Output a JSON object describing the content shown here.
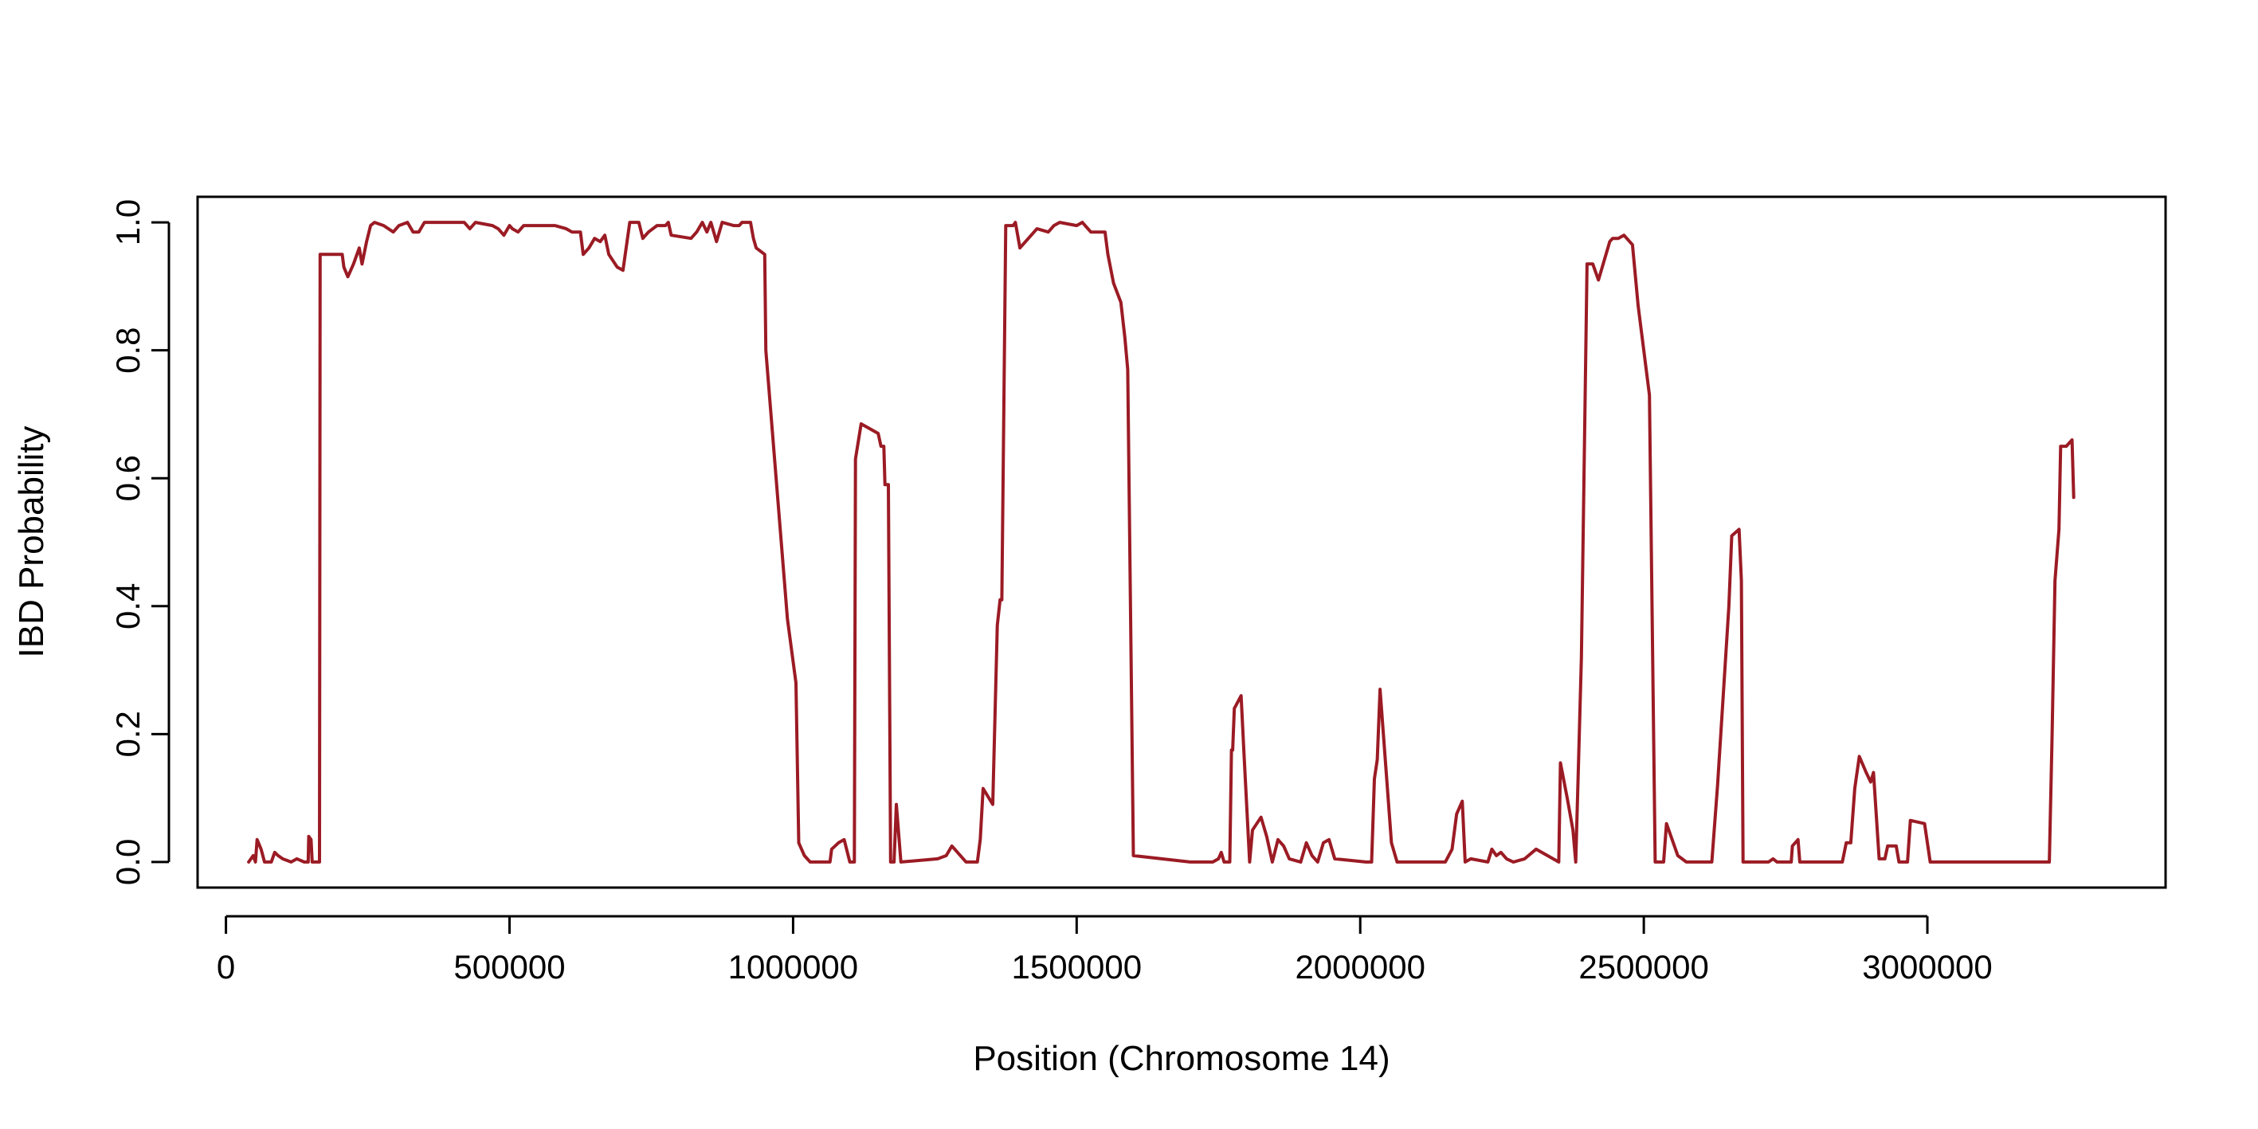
{
  "chart_data": {
    "type": "line",
    "title": "",
    "xlabel": "Position (Chromosome 14)",
    "ylabel": "IBD Probability",
    "xlim": [
      -50000,
      3420000
    ],
    "ylim": [
      -0.04,
      1.04
    ],
    "x_ticks": [
      0,
      500000,
      1000000,
      1500000,
      2000000,
      2500000,
      3000000
    ],
    "x_tick_labels": [
      "0",
      "500000",
      "1000000",
      "1500000",
      "2000000",
      "2500000",
      "3000000"
    ],
    "y_ticks": [
      0.0,
      0.2,
      0.4,
      0.6,
      0.8,
      1.0
    ],
    "y_tick_labels": [
      "0.0",
      "0.2",
      "0.4",
      "0.6",
      "0.8",
      "1.0"
    ],
    "grid": false,
    "legend": "none",
    "line_color": "#9b1b24",
    "series": [
      {
        "points": [
          [
            40000,
            0.0
          ],
          [
            48000,
            0.01
          ],
          [
            52000,
            0.0
          ],
          [
            55000,
            0.035
          ],
          [
            62000,
            0.02
          ],
          [
            68000,
            0.0
          ],
          [
            80000,
            0.0
          ],
          [
            86000,
            0.015
          ],
          [
            92000,
            0.01
          ],
          [
            100000,
            0.005
          ],
          [
            115000,
            0.0
          ],
          [
            125000,
            0.005
          ],
          [
            138000,
            0.0
          ],
          [
            145000,
            0.0
          ],
          [
            146000,
            0.04
          ],
          [
            150000,
            0.035
          ],
          [
            152000,
            0.0
          ],
          [
            165000,
            0.0
          ],
          [
            166000,
            0.95
          ],
          [
            205000,
            0.95
          ],
          [
            208000,
            0.93
          ],
          [
            215000,
            0.915
          ],
          [
            225000,
            0.935
          ],
          [
            235000,
            0.96
          ],
          [
            240000,
            0.935
          ],
          [
            248000,
            0.97
          ],
          [
            255000,
            0.995
          ],
          [
            262000,
            1.0
          ],
          [
            278000,
            0.995
          ],
          [
            295000,
            0.985
          ],
          [
            305000,
            0.995
          ],
          [
            320000,
            1.0
          ],
          [
            330000,
            0.985
          ],
          [
            340000,
            0.985
          ],
          [
            350000,
            1.0
          ],
          [
            420000,
            1.0
          ],
          [
            430000,
            0.99
          ],
          [
            440000,
            1.0
          ],
          [
            470000,
            0.995
          ],
          [
            480000,
            0.99
          ],
          [
            490000,
            0.98
          ],
          [
            500000,
            0.995
          ],
          [
            505000,
            0.99
          ],
          [
            515000,
            0.985
          ],
          [
            525000,
            0.995
          ],
          [
            580000,
            0.995
          ],
          [
            600000,
            0.99
          ],
          [
            610000,
            0.985
          ],
          [
            625000,
            0.985
          ],
          [
            630000,
            0.95
          ],
          [
            640000,
            0.96
          ],
          [
            650000,
            0.975
          ],
          [
            660000,
            0.97
          ],
          [
            668000,
            0.98
          ],
          [
            675000,
            0.95
          ],
          [
            690000,
            0.93
          ],
          [
            700000,
            0.925
          ],
          [
            712000,
            1.0
          ],
          [
            728000,
            1.0
          ],
          [
            735000,
            0.975
          ],
          [
            745000,
            0.985
          ],
          [
            760000,
            0.995
          ],
          [
            775000,
            0.995
          ],
          [
            780000,
            1.0
          ],
          [
            785000,
            0.98
          ],
          [
            820000,
            0.975
          ],
          [
            830000,
            0.985
          ],
          [
            840000,
            1.0
          ],
          [
            848000,
            0.985
          ],
          [
            855000,
            1.0
          ],
          [
            860000,
            0.985
          ],
          [
            865000,
            0.97
          ],
          [
            875000,
            1.0
          ],
          [
            895000,
            0.995
          ],
          [
            905000,
            0.995
          ],
          [
            910000,
            1.0
          ],
          [
            925000,
            1.0
          ],
          [
            930000,
            0.975
          ],
          [
            935000,
            0.96
          ],
          [
            950000,
            0.95
          ],
          [
            952000,
            0.8
          ],
          [
            970000,
            0.6
          ],
          [
            990000,
            0.38
          ],
          [
            1005000,
            0.28
          ],
          [
            1010000,
            0.03
          ],
          [
            1020000,
            0.01
          ],
          [
            1030000,
            0.0
          ],
          [
            1065000,
            0.0
          ],
          [
            1068000,
            0.02
          ],
          [
            1080000,
            0.03
          ],
          [
            1090000,
            0.035
          ],
          [
            1100000,
            0.0
          ],
          [
            1108000,
            0.0
          ],
          [
            1110000,
            0.63
          ],
          [
            1120000,
            0.685
          ],
          [
            1150000,
            0.67
          ],
          [
            1155000,
            0.65
          ],
          [
            1160000,
            0.65
          ],
          [
            1162000,
            0.59
          ],
          [
            1168000,
            0.59
          ],
          [
            1172000,
            0.0
          ],
          [
            1178000,
            0.0
          ],
          [
            1182000,
            0.09
          ],
          [
            1190000,
            0.0
          ],
          [
            1255000,
            0.005
          ],
          [
            1270000,
            0.01
          ],
          [
            1280000,
            0.025
          ],
          [
            1305000,
            0.0
          ],
          [
            1325000,
            0.0
          ],
          [
            1330000,
            0.035
          ],
          [
            1335000,
            0.115
          ],
          [
            1352000,
            0.09
          ],
          [
            1360000,
            0.37
          ],
          [
            1365000,
            0.41
          ],
          [
            1368000,
            0.41
          ],
          [
            1375000,
            0.995
          ],
          [
            1388000,
            0.995
          ],
          [
            1392000,
            1.0
          ],
          [
            1400000,
            0.96
          ],
          [
            1430000,
            0.99
          ],
          [
            1450000,
            0.985
          ],
          [
            1460000,
            0.995
          ],
          [
            1470000,
            1.0
          ],
          [
            1500000,
            0.995
          ],
          [
            1510000,
            1.0
          ],
          [
            1525000,
            0.985
          ],
          [
            1550000,
            0.985
          ],
          [
            1555000,
            0.95
          ],
          [
            1565000,
            0.905
          ],
          [
            1578000,
            0.875
          ],
          [
            1585000,
            0.82
          ],
          [
            1590000,
            0.77
          ],
          [
            1600000,
            0.01
          ],
          [
            1650000,
            0.005
          ],
          [
            1700000,
            0.0
          ],
          [
            1740000,
            0.0
          ],
          [
            1750000,
            0.005
          ],
          [
            1755000,
            0.015
          ],
          [
            1760000,
            0.0
          ],
          [
            1770000,
            0.0
          ],
          [
            1773000,
            0.175
          ],
          [
            1775000,
            0.175
          ],
          [
            1778000,
            0.24
          ],
          [
            1790000,
            0.26
          ],
          [
            1795000,
            0.17
          ],
          [
            1805000,
            0.0
          ],
          [
            1810000,
            0.05
          ],
          [
            1825000,
            0.07
          ],
          [
            1835000,
            0.04
          ],
          [
            1845000,
            0.0
          ],
          [
            1855000,
            0.035
          ],
          [
            1865000,
            0.025
          ],
          [
            1875000,
            0.005
          ],
          [
            1895000,
            0.0
          ],
          [
            1905000,
            0.03
          ],
          [
            1915000,
            0.01
          ],
          [
            1925000,
            0.0
          ],
          [
            1935000,
            0.03
          ],
          [
            1945000,
            0.035
          ],
          [
            1955000,
            0.005
          ],
          [
            2010000,
            0.0
          ],
          [
            2020000,
            0.0
          ],
          [
            2025000,
            0.13
          ],
          [
            2030000,
            0.16
          ],
          [
            2035000,
            0.27
          ],
          [
            2055000,
            0.03
          ],
          [
            2065000,
            0.0
          ],
          [
            2150000,
            0.0
          ],
          [
            2162000,
            0.02
          ],
          [
            2170000,
            0.075
          ],
          [
            2180000,
            0.095
          ],
          [
            2185000,
            0.0
          ],
          [
            2195000,
            0.005
          ],
          [
            2225000,
            0.0
          ],
          [
            2232000,
            0.02
          ],
          [
            2240000,
            0.01
          ],
          [
            2248000,
            0.015
          ],
          [
            2258000,
            0.005
          ],
          [
            2270000,
            0.0
          ],
          [
            2290000,
            0.005
          ],
          [
            2310000,
            0.02
          ],
          [
            2350000,
            0.0
          ],
          [
            2353000,
            0.155
          ],
          [
            2365000,
            0.1
          ],
          [
            2375000,
            0.05
          ],
          [
            2380000,
            0.0
          ],
          [
            2385000,
            0.16
          ],
          [
            2390000,
            0.32
          ],
          [
            2400000,
            0.935
          ],
          [
            2410000,
            0.935
          ],
          [
            2420000,
            0.91
          ],
          [
            2440000,
            0.97
          ],
          [
            2445000,
            0.975
          ],
          [
            2455000,
            0.975
          ],
          [
            2465000,
            0.98
          ],
          [
            2480000,
            0.965
          ],
          [
            2490000,
            0.87
          ],
          [
            2510000,
            0.73
          ],
          [
            2520000,
            0.0
          ],
          [
            2535000,
            0.0
          ],
          [
            2540000,
            0.06
          ],
          [
            2560000,
            0.01
          ],
          [
            2575000,
            0.0
          ],
          [
            2620000,
            0.0
          ],
          [
            2630000,
            0.12
          ],
          [
            2650000,
            0.4
          ],
          [
            2655000,
            0.51
          ],
          [
            2668000,
            0.52
          ],
          [
            2672000,
            0.44
          ],
          [
            2675000,
            0.0
          ],
          [
            2720000,
            0.0
          ],
          [
            2728000,
            0.005
          ],
          [
            2735000,
            0.0
          ],
          [
            2760000,
            0.0
          ],
          [
            2762000,
            0.025
          ],
          [
            2772000,
            0.035
          ],
          [
            2775000,
            0.0
          ],
          [
            2850000,
            0.0
          ],
          [
            2857000,
            0.03
          ],
          [
            2865000,
            0.03
          ],
          [
            2872000,
            0.115
          ],
          [
            2880000,
            0.165
          ],
          [
            2892000,
            0.14
          ],
          [
            2900000,
            0.125
          ],
          [
            2905000,
            0.14
          ],
          [
            2915000,
            0.005
          ],
          [
            2925000,
            0.005
          ],
          [
            2930000,
            0.025
          ],
          [
            2945000,
            0.025
          ],
          [
            2950000,
            0.0
          ],
          [
            2965000,
            0.0
          ],
          [
            2970000,
            0.065
          ],
          [
            2995000,
            0.06
          ],
          [
            3005000,
            0.0
          ],
          [
            3215000,
            0.0
          ],
          [
            3220000,
            0.2
          ],
          [
            3225000,
            0.44
          ],
          [
            3232000,
            0.52
          ],
          [
            3235000,
            0.65
          ],
          [
            3245000,
            0.65
          ],
          [
            3255000,
            0.66
          ],
          [
            3258000,
            0.57
          ]
        ]
      }
    ]
  }
}
